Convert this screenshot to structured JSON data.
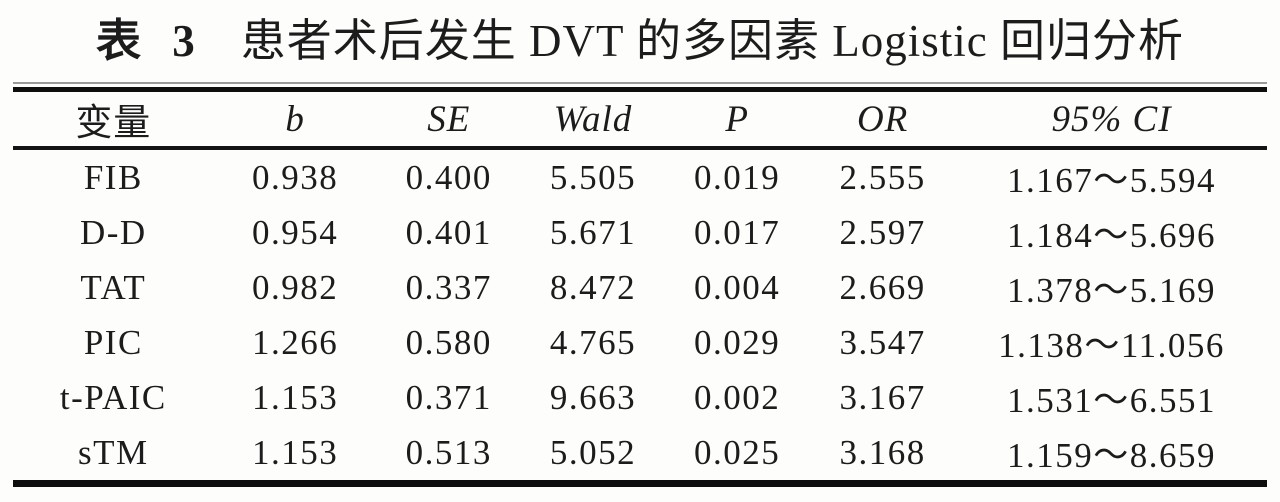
{
  "title": {
    "prefix": "表 3",
    "text": "患者术后发生 DVT 的多因素 Logistic 回归分析"
  },
  "table": {
    "columns": [
      {
        "key": "variable",
        "label": "变量"
      },
      {
        "key": "b",
        "label": "b"
      },
      {
        "key": "se",
        "label": "SE"
      },
      {
        "key": "wald",
        "label": "Wald"
      },
      {
        "key": "p",
        "label": "P"
      },
      {
        "key": "or",
        "label": "OR"
      },
      {
        "key": "ci",
        "label": "95% CI"
      }
    ],
    "rows": [
      {
        "variable": "FIB",
        "b": "0.938",
        "se": "0.400",
        "wald": "5.505",
        "p": "0.019",
        "or": "2.555",
        "ci": "1.167～5.594"
      },
      {
        "variable": "D-D",
        "b": "0.954",
        "se": "0.401",
        "wald": "5.671",
        "p": "0.017",
        "or": "2.597",
        "ci": "1.184～5.696"
      },
      {
        "variable": "TAT",
        "b": "0.982",
        "se": "0.337",
        "wald": "8.472",
        "p": "0.004",
        "or": "2.669",
        "ci": "1.378～5.169"
      },
      {
        "variable": "PIC",
        "b": "1.266",
        "se": "0.580",
        "wald": "4.765",
        "p": "0.029",
        "or": "3.547",
        "ci": "1.138～11.056"
      },
      {
        "variable": "t-PAIC",
        "b": "1.153",
        "se": "0.371",
        "wald": "9.663",
        "p": "0.002",
        "or": "3.167",
        "ci": "1.531～6.551"
      },
      {
        "variable": "sTM",
        "b": "1.153",
        "se": "0.513",
        "wald": "5.052",
        "p": "0.025",
        "or": "3.168",
        "ci": "1.159～8.659"
      }
    ]
  },
  "colors": {
    "text": "#1c1c1c",
    "rule": "#0e0e0e",
    "background": "#fdfdfc"
  }
}
